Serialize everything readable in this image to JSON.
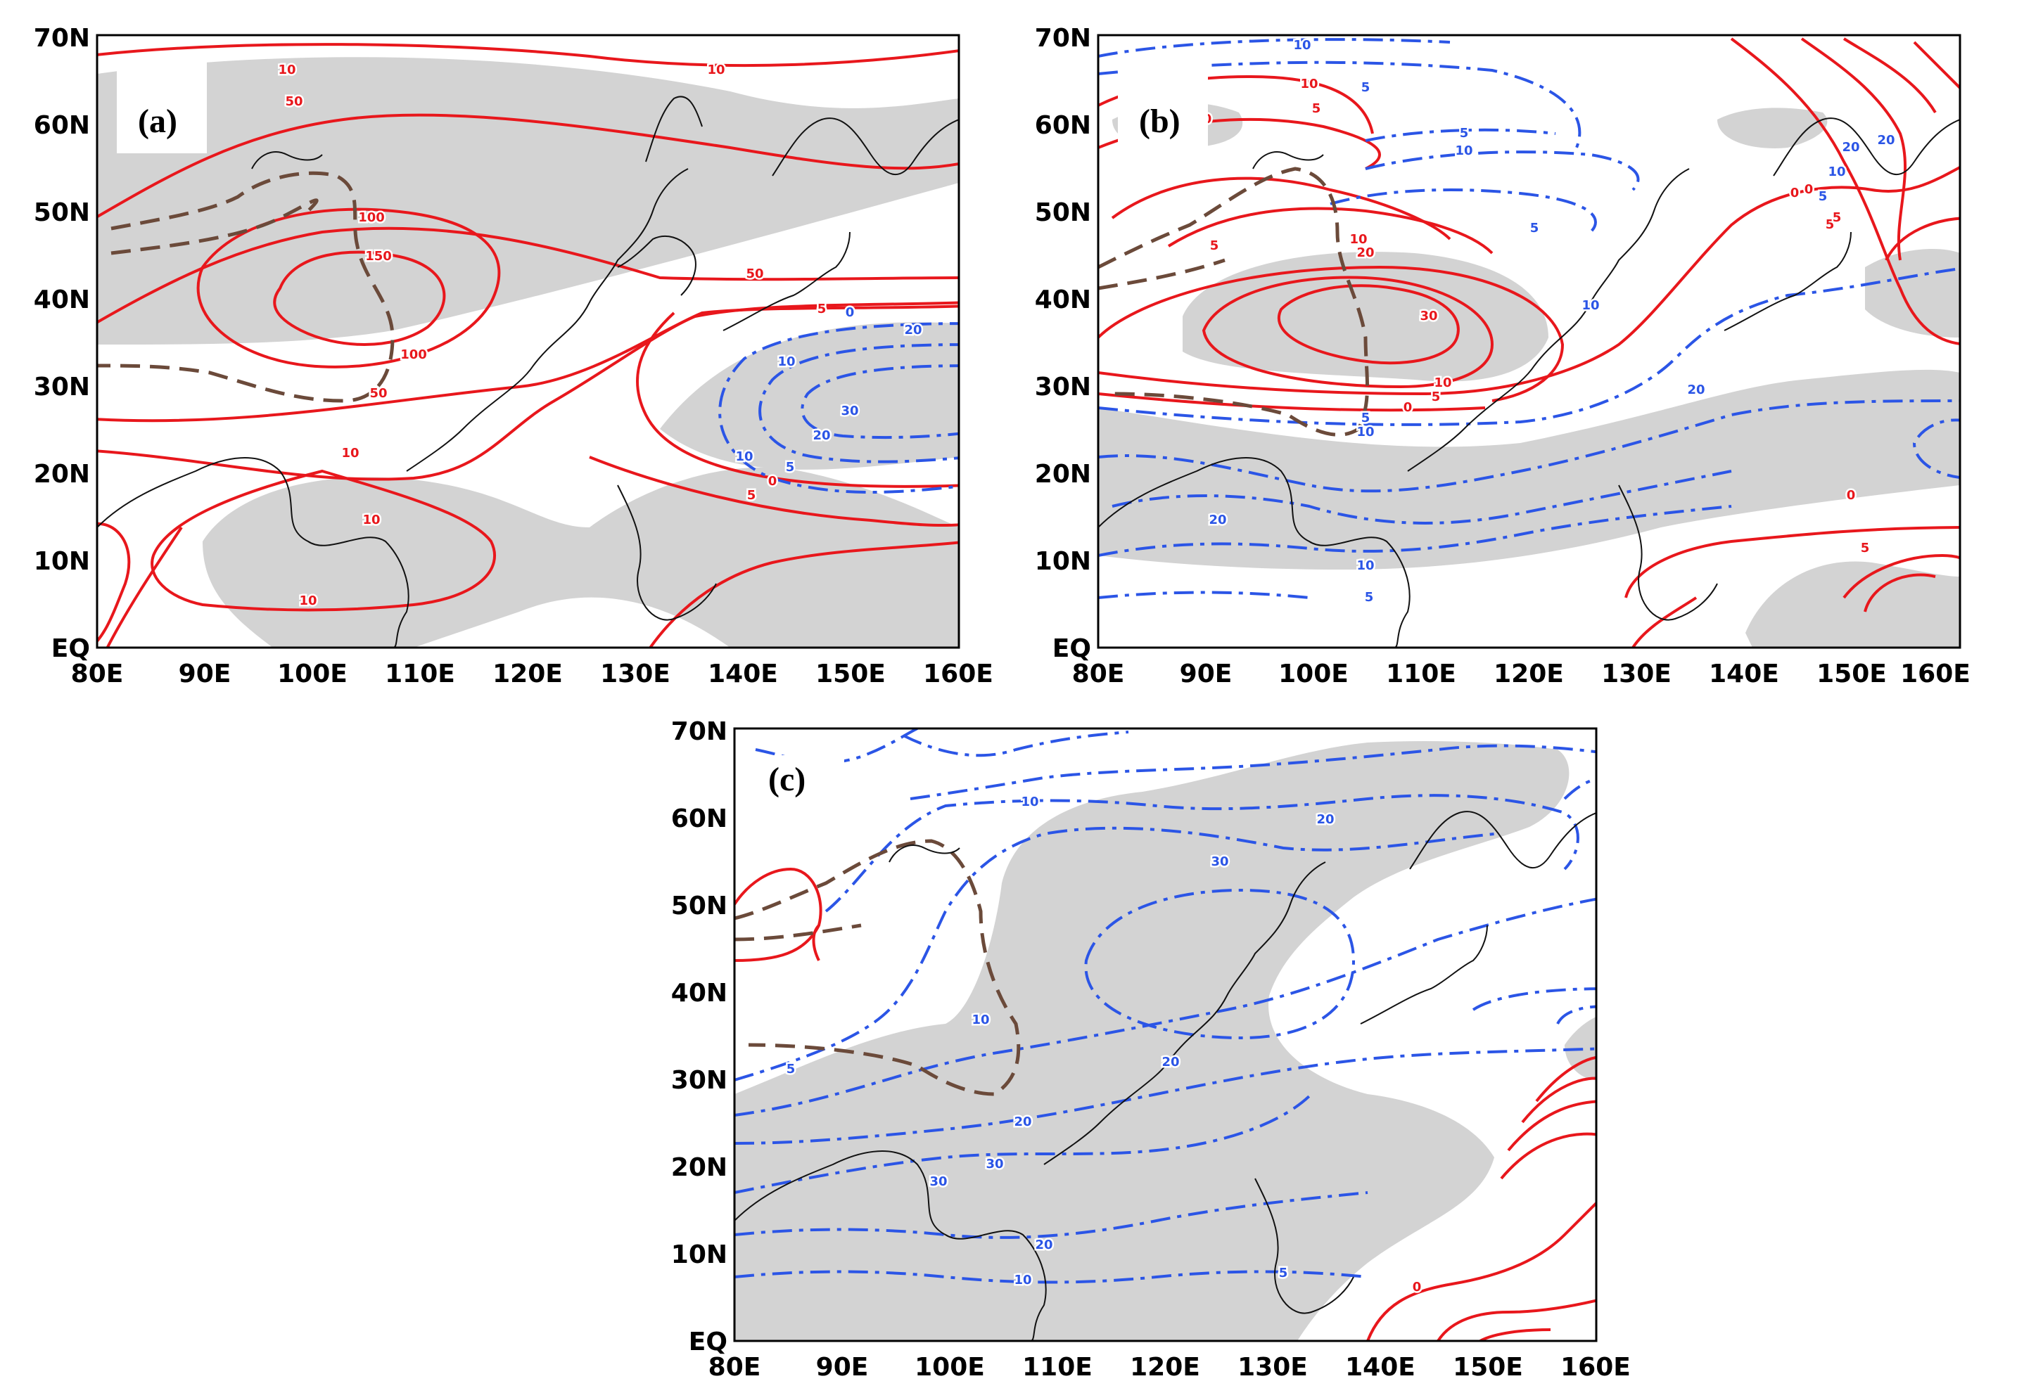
{
  "figure": {
    "lon_ticks": [
      "80E",
      "90E",
      "100E",
      "110E",
      "120E",
      "130E",
      "140E",
      "150E",
      "160E"
    ],
    "lat_ticks": [
      "EQ",
      "10N",
      "20N",
      "30N",
      "40N",
      "50N",
      "60N",
      "70N"
    ],
    "colors": {
      "positive": "#e8171c",
      "negative": "#2b55e6",
      "plateau": "#6b4a3a",
      "shading": "#d3d3d3"
    }
  },
  "panels": [
    {
      "id": "a",
      "label": "(a)",
      "contour_labels": [
        "10",
        "10",
        "50",
        "100",
        "150",
        "100",
        "50",
        "10",
        "10",
        "10",
        "50",
        "5",
        "0",
        "20",
        "10",
        "30",
        "20",
        "10",
        "5",
        "0",
        "5"
      ]
    },
    {
      "id": "b",
      "label": "(b)",
      "contour_labels": [
        "10",
        "5",
        "10",
        "5",
        "0",
        "5",
        "10",
        "20",
        "30",
        "10",
        "5",
        "0",
        "5",
        "10",
        "5",
        "5",
        "10",
        "5",
        "0",
        "10",
        "5",
        "20",
        "20",
        "20",
        "10",
        "5",
        "0",
        "5",
        "10",
        "20",
        "5",
        "0"
      ]
    },
    {
      "id": "c",
      "label": "(c)",
      "contour_labels": [
        "10",
        "20",
        "30",
        "5",
        "10",
        "20",
        "20",
        "30",
        "30",
        "20",
        "10",
        "5",
        "0"
      ]
    }
  ]
}
